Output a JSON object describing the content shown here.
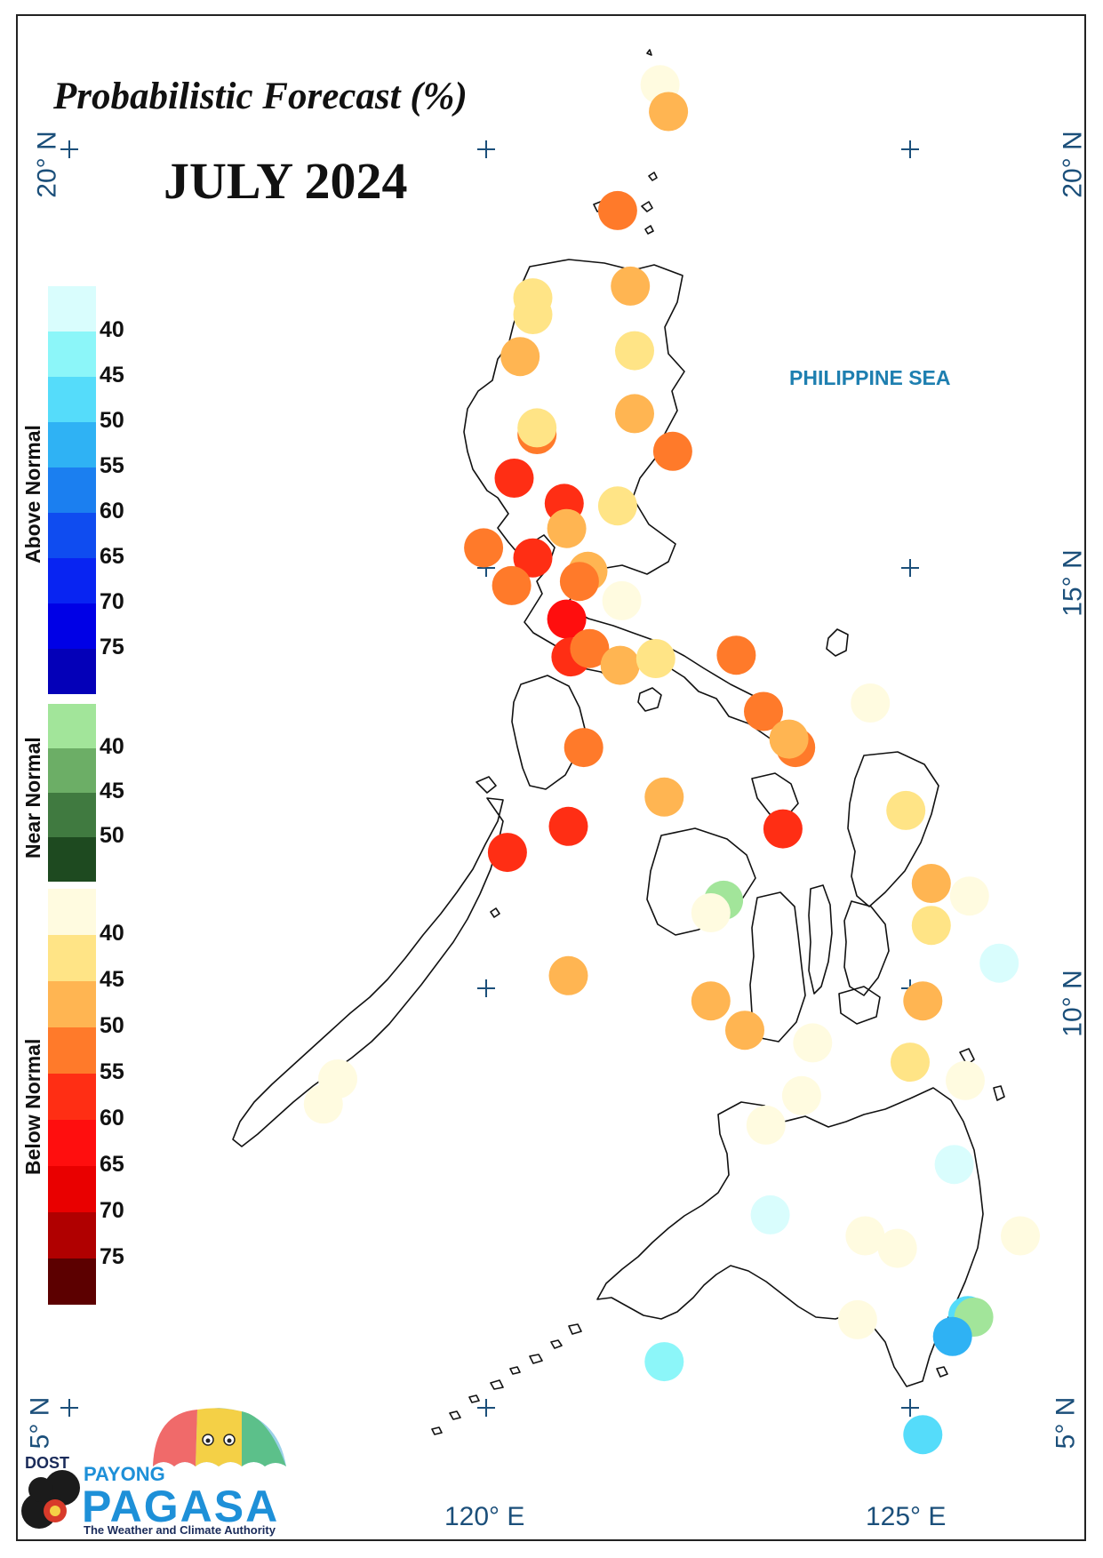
{
  "map": {
    "title": "Probabilistic Forecast (%)",
    "subtitle": "JULY 2024",
    "sea_label": "PHILIPPINE SEA",
    "lat_labels": [
      "20° N",
      "15° N",
      "10° N",
      "5° N"
    ],
    "lon_labels": [
      "120° E",
      "125° E"
    ]
  },
  "legend": {
    "above_normal": {
      "label": "Above Normal",
      "ticks": [
        "40",
        "45",
        "50",
        "55",
        "60",
        "65",
        "70",
        "75"
      ],
      "colors": [
        "#d9fdfd",
        "#8cf6f9",
        "#55dcfa",
        "#2fb2f4",
        "#1b7ff0",
        "#0f4cf0",
        "#0824f2",
        "#0000e6",
        "#0400b8"
      ]
    },
    "near_normal": {
      "label": "Near Normal",
      "ticks": [
        "40",
        "45",
        "50"
      ],
      "colors": [
        "#a2e59a",
        "#6cae66",
        "#407a40",
        "#1e4a20"
      ]
    },
    "below_normal": {
      "label": "Below Normal",
      "ticks": [
        "40",
        "45",
        "50",
        "55",
        "60",
        "65",
        "70",
        "75"
      ],
      "colors": [
        "#fffbe0",
        "#ffe486",
        "#ffb552",
        "#ff7a2a",
        "#ff2e14",
        "#ff0e0e",
        "#e90000",
        "#b00000",
        "#5c0000"
      ]
    }
  },
  "logo": {
    "org": "DOST",
    "name_top": "PAYONG",
    "name_main": "PAGASA",
    "tagline": "The Weather and Climate Authority"
  },
  "stations": [
    {
      "lon": 122.05,
      "lat": 20.77,
      "category": "below",
      "color": "#fffbe0"
    },
    {
      "lon": 122.15,
      "lat": 20.45,
      "category": "below",
      "color": "#ffb552"
    },
    {
      "lon": 121.55,
      "lat": 19.27,
      "category": "below",
      "color": "#ff7a2a"
    },
    {
      "lon": 120.55,
      "lat": 18.23,
      "category": "below",
      "color": "#ffe486"
    },
    {
      "lon": 120.55,
      "lat": 18.03,
      "category": "below",
      "color": "#ffe486"
    },
    {
      "lon": 121.7,
      "lat": 18.37,
      "category": "below",
      "color": "#ffb552"
    },
    {
      "lon": 120.4,
      "lat": 17.53,
      "category": "below",
      "color": "#ffb552"
    },
    {
      "lon": 121.75,
      "lat": 17.6,
      "category": "below",
      "color": "#ffe486"
    },
    {
      "lon": 121.75,
      "lat": 16.85,
      "category": "below",
      "color": "#ffb552"
    },
    {
      "lon": 120.6,
      "lat": 16.6,
      "category": "below",
      "color": "#ff7a2a"
    },
    {
      "lon": 120.6,
      "lat": 16.68,
      "category": "below",
      "color": "#ffe486"
    },
    {
      "lon": 122.2,
      "lat": 16.4,
      "category": "below",
      "color": "#ff7a2a"
    },
    {
      "lon": 120.33,
      "lat": 16.08,
      "category": "below",
      "color": "#ff2e14"
    },
    {
      "lon": 120.92,
      "lat": 15.78,
      "category": "below",
      "color": "#ff2e14"
    },
    {
      "lon": 121.55,
      "lat": 15.75,
      "category": "below",
      "color": "#ffe486"
    },
    {
      "lon": 120.95,
      "lat": 15.48,
      "category": "below",
      "color": "#ffb552"
    },
    {
      "lon": 119.97,
      "lat": 15.25,
      "category": "below",
      "color": "#ff7a2a"
    },
    {
      "lon": 120.55,
      "lat": 15.13,
      "category": "below",
      "color": "#ff2e14"
    },
    {
      "lon": 121.2,
      "lat": 14.97,
      "category": "below",
      "color": "#ffb552"
    },
    {
      "lon": 121.1,
      "lat": 14.85,
      "category": "below",
      "color": "#ff7a2a"
    },
    {
      "lon": 120.3,
      "lat": 14.8,
      "category": "below",
      "color": "#ff7a2a"
    },
    {
      "lon": 121.6,
      "lat": 14.62,
      "category": "below",
      "color": "#fffbe0"
    },
    {
      "lon": 120.95,
      "lat": 14.4,
      "category": "below",
      "color": "#ff0e0e"
    },
    {
      "lon": 121.0,
      "lat": 13.95,
      "category": "below",
      "color": "#ff2e14"
    },
    {
      "lon": 121.22,
      "lat": 14.05,
      "category": "below",
      "color": "#ff7a2a"
    },
    {
      "lon": 121.58,
      "lat": 13.85,
      "category": "below",
      "color": "#ffb552"
    },
    {
      "lon": 122.0,
      "lat": 13.93,
      "category": "below",
      "color": "#ffe486"
    },
    {
      "lon": 122.95,
      "lat": 13.97,
      "category": "below",
      "color": "#ff7a2a"
    },
    {
      "lon": 123.27,
      "lat": 13.3,
      "category": "below",
      "color": "#ff7a2a"
    },
    {
      "lon": 124.53,
      "lat": 13.4,
      "category": "below",
      "color": "#fffbe0"
    },
    {
      "lon": 121.15,
      "lat": 12.87,
      "category": "below",
      "color": "#ff7a2a"
    },
    {
      "lon": 123.65,
      "lat": 12.87,
      "category": "below",
      "color": "#ff7a2a"
    },
    {
      "lon": 123.57,
      "lat": 12.97,
      "category": "below",
      "color": "#ffb552"
    },
    {
      "lon": 122.1,
      "lat": 12.28,
      "category": "below",
      "color": "#ffb552"
    },
    {
      "lon": 124.95,
      "lat": 12.12,
      "category": "below",
      "color": "#ffe486"
    },
    {
      "lon": 120.97,
      "lat": 11.93,
      "category": "below",
      "color": "#ff2e14"
    },
    {
      "lon": 123.5,
      "lat": 11.9,
      "category": "below",
      "color": "#ff2e14"
    },
    {
      "lon": 120.25,
      "lat": 11.62,
      "category": "below",
      "color": "#ff2e14"
    },
    {
      "lon": 125.25,
      "lat": 11.25,
      "category": "below",
      "color": "#ffb552"
    },
    {
      "lon": 125.7,
      "lat": 11.1,
      "category": "below",
      "color": "#fffbe0"
    },
    {
      "lon": 122.8,
      "lat": 11.05,
      "category": "near",
      "color": "#a2e59a"
    },
    {
      "lon": 122.65,
      "lat": 10.9,
      "category": "below",
      "color": "#fffbe0"
    },
    {
      "lon": 125.25,
      "lat": 10.75,
      "category": "below",
      "color": "#ffe486"
    },
    {
      "lon": 126.05,
      "lat": 10.3,
      "category": "above",
      "color": "#d9fdfd"
    },
    {
      "lon": 120.97,
      "lat": 10.15,
      "category": "below",
      "color": "#ffb552"
    },
    {
      "lon": 122.65,
      "lat": 9.85,
      "category": "below",
      "color": "#ffb552"
    },
    {
      "lon": 125.15,
      "lat": 9.85,
      "category": "below",
      "color": "#ffb552"
    },
    {
      "lon": 123.05,
      "lat": 9.5,
      "category": "below",
      "color": "#ffb552"
    },
    {
      "lon": 123.85,
      "lat": 9.35,
      "category": "below",
      "color": "#fffbe0"
    },
    {
      "lon": 125.0,
      "lat": 9.12,
      "category": "below",
      "color": "#ffe486"
    },
    {
      "lon": 118.25,
      "lat": 8.92,
      "category": "below",
      "color": "#fffbe0"
    },
    {
      "lon": 118.08,
      "lat": 8.62,
      "category": "below",
      "color": "#fffbe0"
    },
    {
      "lon": 123.72,
      "lat": 8.72,
      "category": "below",
      "color": "#fffbe0"
    },
    {
      "lon": 125.65,
      "lat": 8.9,
      "category": "below",
      "color": "#fffbe0"
    },
    {
      "lon": 123.3,
      "lat": 8.37,
      "category": "below",
      "color": "#fffbe0"
    },
    {
      "lon": 125.52,
      "lat": 7.9,
      "category": "above",
      "color": "#d9fdfd"
    },
    {
      "lon": 123.35,
      "lat": 7.3,
      "category": "above",
      "color": "#d9fdfd"
    },
    {
      "lon": 124.47,
      "lat": 7.05,
      "category": "below",
      "color": "#fffbe0"
    },
    {
      "lon": 124.85,
      "lat": 6.9,
      "category": "below",
      "color": "#fffbe0"
    },
    {
      "lon": 126.3,
      "lat": 7.05,
      "category": "below",
      "color": "#fffbe0"
    },
    {
      "lon": 124.38,
      "lat": 6.05,
      "category": "below",
      "color": "#fffbe0"
    },
    {
      "lon": 125.68,
      "lat": 6.1,
      "category": "above",
      "color": "#55dcfa"
    },
    {
      "lon": 125.75,
      "lat": 6.08,
      "category": "near",
      "color": "#a2e59a"
    },
    {
      "lon": 125.5,
      "lat": 5.85,
      "category": "above",
      "color": "#2fb2f4"
    },
    {
      "lon": 122.1,
      "lat": 5.55,
      "category": "above",
      "color": "#8cf6f9"
    },
    {
      "lon": 125.15,
      "lat": 4.68,
      "category": "above",
      "color": "#55dcfa"
    }
  ]
}
